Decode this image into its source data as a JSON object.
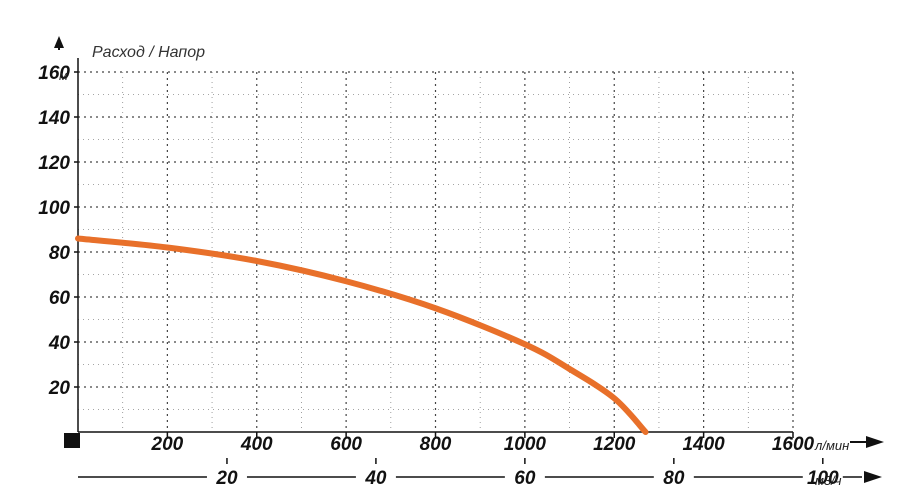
{
  "chart_data": {
    "type": "line",
    "title": "Расход / Напор",
    "y_unit": "м",
    "x_unit": "л/мин",
    "x2_unit": "м3/ч",
    "xlim": [
      0,
      1600
    ],
    "ylim": [
      0,
      160
    ],
    "x_ticks": [
      200,
      400,
      600,
      800,
      1000,
      1200,
      1400,
      1600
    ],
    "y_ticks": [
      20,
      40,
      60,
      80,
      100,
      120,
      140,
      160
    ],
    "x2_ticks": [
      20,
      40,
      60,
      80,
      100
    ],
    "grid": true,
    "series": [
      {
        "color": "#e8702a",
        "x": [
          0,
          200,
          400,
          600,
          800,
          1000,
          1100,
          1200,
          1270
        ],
        "y": [
          86,
          82,
          76,
          67,
          55,
          39,
          28,
          15,
          0
        ]
      }
    ]
  }
}
